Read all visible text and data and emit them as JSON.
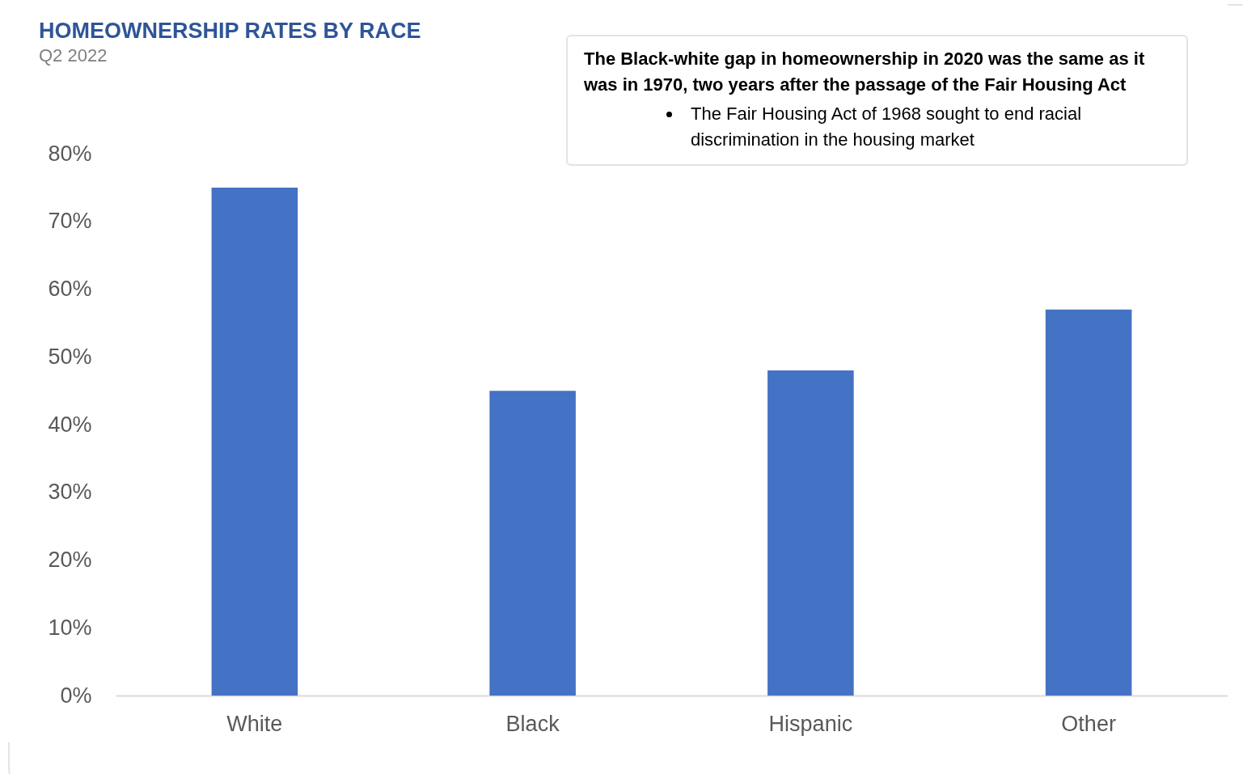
{
  "chart_data": {
    "type": "bar",
    "title": "HOMEOWNERSHIP RATES BY RACE",
    "subtitle": "Q2 2022",
    "categories": [
      "White",
      "Black",
      "Hispanic",
      "Other"
    ],
    "values": [
      75,
      45,
      48,
      57
    ],
    "color": "#4472c4",
    "ylim": [
      0,
      80
    ],
    "yticks": [
      {
        "value": 0,
        "label": "0%"
      },
      {
        "value": 10,
        "label": "10%"
      },
      {
        "value": 20,
        "label": "20%"
      },
      {
        "value": 30,
        "label": "30%"
      },
      {
        "value": 40,
        "label": "40%"
      },
      {
        "value": 50,
        "label": "50%"
      },
      {
        "value": 60,
        "label": "60%"
      },
      {
        "value": 70,
        "label": "70%"
      },
      {
        "value": 80,
        "label": "80%"
      }
    ],
    "grid": false,
    "annotations": [
      "The Black-white gap in homeownership in 2020 was the same as it was in 1970, two years after the passage of the Fair Housing Act",
      "The Fair Housing Act of 1968 sought to end racial discrimination in the housing market"
    ]
  }
}
